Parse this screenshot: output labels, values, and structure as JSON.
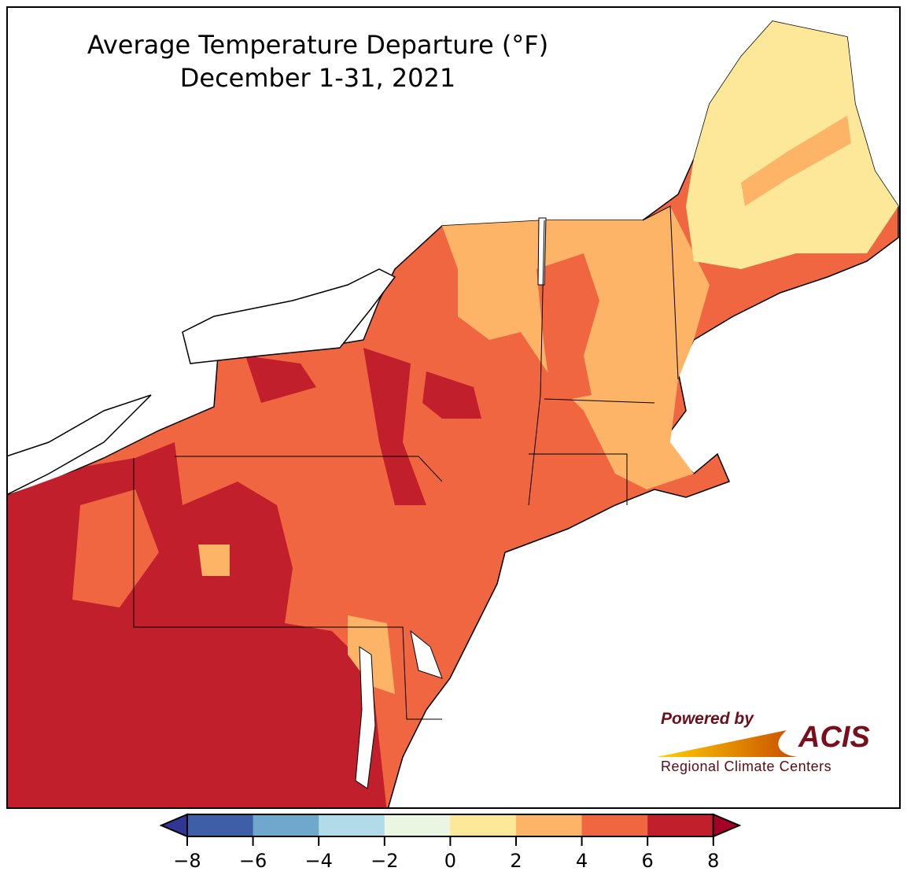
{
  "title": {
    "line1": "Average Temperature Departure (°F)",
    "line2": "December 1-31, 2021"
  },
  "logo": {
    "powered_by": "Powered by",
    "brand": "ACIS",
    "subtitle": "Regional Climate Centers"
  },
  "colorbar": {
    "ticks": [
      "−8",
      "−6",
      "−4",
      "−2",
      "0",
      "2",
      "4",
      "6",
      "8"
    ],
    "colors": [
      "#3f5ea8",
      "#6fa7cd",
      "#b2dbe9",
      "#ebf6e2",
      "#fde89a",
      "#fdb466",
      "#f06640",
      "#c11f2b"
    ],
    "under_color": "#313695",
    "over_color": "#a50026"
  },
  "map_colors": {
    "dark_red": "#c11f2b",
    "orange_red": "#f06640",
    "light_orange": "#fdb466",
    "yellow": "#fde89a",
    "water": "#ffffff"
  }
}
